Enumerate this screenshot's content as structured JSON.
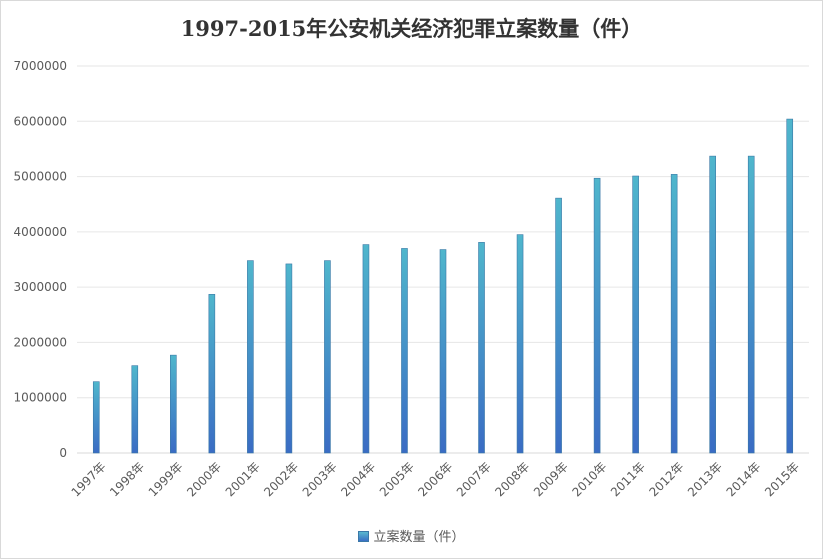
{
  "chart_data": {
    "type": "bar",
    "title": "1997-2015年公安机关经济犯罪立案数量（件）",
    "categories": [
      "1997年",
      "1998年",
      "1999年",
      "2000年",
      "2001年",
      "2002年",
      "2003年",
      "2004年",
      "2005年",
      "2006年",
      "2007年",
      "2008年",
      "2009年",
      "2010年",
      "2011年",
      "2012年",
      "2013年",
      "2014年",
      "2015年"
    ],
    "series": [
      {
        "name": "立案数量（件）",
        "values": [
          1290000,
          1580000,
          1770000,
          2870000,
          3480000,
          3420000,
          3480000,
          3770000,
          3700000,
          3680000,
          3810000,
          3950000,
          4610000,
          4970000,
          5010000,
          5040000,
          5370000,
          5370000,
          6040000
        ]
      }
    ],
    "ylim": [
      0,
      7000000
    ],
    "yticks": [
      "0",
      "1000000",
      "2000000",
      "3000000",
      "4000000",
      "5000000",
      "6000000",
      "7000000"
    ],
    "grid": true,
    "legend": "bottom",
    "colors": {
      "bar_top": "#4fb6cc",
      "bar_bottom": "#3a6cc4",
      "grid": "#e6e6e6"
    }
  }
}
